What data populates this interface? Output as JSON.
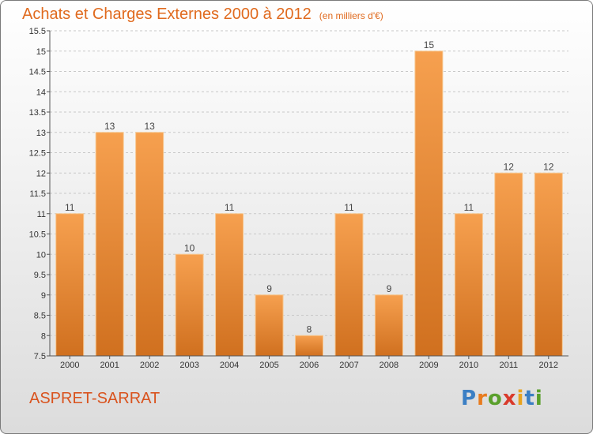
{
  "header": {
    "title": "Achats et Charges Externes 2000 à 2012",
    "subtitle": "(en milliers d'€)"
  },
  "footer": {
    "place": "ASPRET-SARRAT"
  },
  "logo": {
    "text": "Proxiti",
    "letters": [
      "P",
      "r",
      "o",
      "x",
      "i",
      "t",
      "i"
    ],
    "colors": [
      "#3b7fc4",
      "#e87b1e",
      "#5aa02c",
      "#d93a2b",
      "#e8a31e",
      "#3b7fc4",
      "#5aa02c"
    ]
  },
  "colors": {
    "bar_top": "#f6a04f",
    "bar_bottom": "#d0701f",
    "accent": "#e06a1e"
  },
  "chart_data": {
    "type": "bar",
    "title": "Achats et Charges Externes 2000 à 2012",
    "subtitle": "(en milliers d'€)",
    "categories": [
      "2000",
      "2001",
      "2002",
      "2003",
      "2004",
      "2005",
      "2006",
      "2007",
      "2008",
      "2009",
      "2010",
      "2011",
      "2012"
    ],
    "values": [
      11,
      13,
      13,
      10,
      11,
      9,
      8,
      11,
      9,
      15,
      11,
      12,
      12
    ],
    "value_labels": [
      "11",
      "13",
      "13",
      "10",
      "11",
      "9",
      "8",
      "11",
      "9",
      "15",
      "11",
      "12",
      "12"
    ],
    "y_ticks": [
      "7.5",
      "8",
      "8.5",
      "9",
      "9.5",
      "10",
      "10.5",
      "11",
      "11.5",
      "12",
      "12.5",
      "13",
      "13.5",
      "14",
      "14.5",
      "15",
      "15.5"
    ],
    "ylim": [
      7.5,
      15.5
    ],
    "grid": "horizontal dashed",
    "xlabel": "",
    "ylabel": ""
  }
}
